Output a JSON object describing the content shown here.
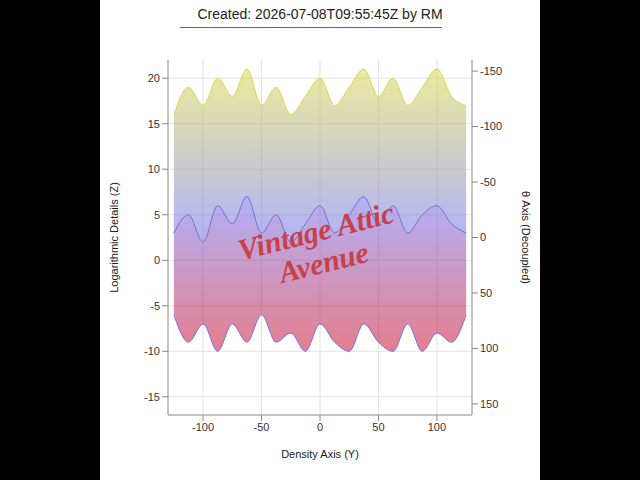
{
  "chart_data": {
    "type": "surface",
    "title": "Created: 2026-07-08T09:55:45Z by RM",
    "xlabel": "Density Axis (Y)",
    "ylabel": "Logarithmic Details (Z)",
    "y2label": "θ Axis (Decoupled)",
    "x": [
      -125,
      -112.5,
      -100,
      -87.5,
      -75,
      -62.5,
      -50,
      -37.5,
      -25,
      -12.5,
      0,
      12.5,
      25,
      37.5,
      50,
      62.5,
      75,
      87.5,
      100,
      112.5,
      125
    ],
    "series": [
      {
        "color": "#d8d84a",
        "values": [
          16,
          19,
          17,
          20,
          18,
          21,
          17,
          19,
          16,
          18,
          20,
          17,
          19,
          21,
          18,
          20,
          17,
          19,
          21,
          18,
          17
        ]
      },
      {
        "color": "#6f6ff2",
        "values": [
          3,
          5,
          2,
          6,
          4,
          7,
          3,
          5,
          2,
          4,
          6,
          3,
          5,
          7,
          4,
          6,
          3,
          5,
          6,
          4,
          3
        ]
      },
      {
        "color": "#d0102c",
        "values": [
          -6,
          -9,
          -7,
          -10,
          -7,
          -9,
          -6,
          -9,
          -8,
          -10,
          -7,
          -9,
          -10,
          -7,
          -9,
          -10,
          -7,
          -10,
          -8,
          -9,
          -6
        ]
      }
    ],
    "xlim": [
      -130,
      130
    ],
    "xticks": [
      -100,
      -50,
      0,
      50,
      100
    ],
    "ylim": [
      -17,
      22
    ],
    "yticks": [
      -15,
      -10,
      -5,
      0,
      5,
      10,
      15,
      20
    ],
    "y2lim": [
      -160,
      160
    ],
    "y2ticks": [
      -150,
      -100,
      -50,
      0,
      50,
      100,
      150
    ],
    "grid": true,
    "annotations": [
      {
        "text": "Vintage Attic Avenue",
        "color": "#c8404a"
      }
    ]
  }
}
